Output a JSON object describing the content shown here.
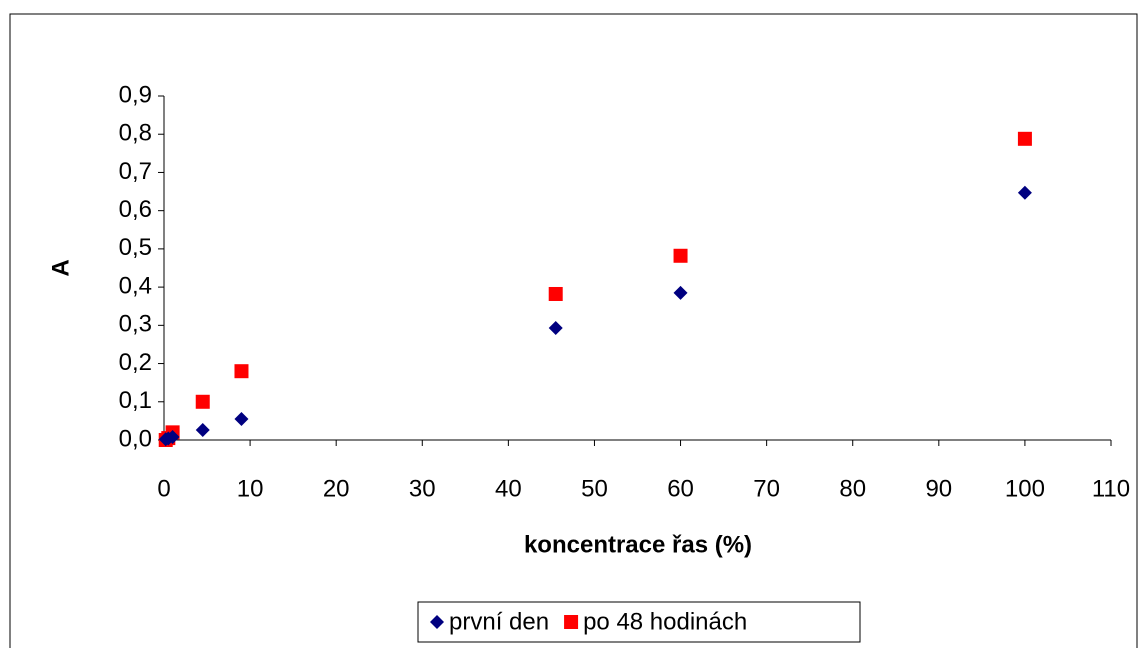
{
  "chart_data": {
    "type": "scatter",
    "x_label": "koncentrace řas (%)",
    "y_label": "A",
    "series": [
      {
        "name": "první den",
        "color": "#000080",
        "marker": "diamond",
        "x": [
          0.2,
          0.5,
          1,
          4.5,
          9,
          45.5,
          60,
          100
        ],
        "values": [
          0.002,
          0.004,
          0.008,
          0.026,
          0.055,
          0.293,
          0.385,
          0.647
        ]
      },
      {
        "name": "po 48 hodinách",
        "color": "#ff0000",
        "marker": "square",
        "x": [
          0.2,
          0.5,
          1,
          4.5,
          9,
          45.5,
          60,
          100
        ],
        "values": [
          0.0,
          0.005,
          0.02,
          0.1,
          0.18,
          0.382,
          0.482,
          0.788
        ]
      }
    ],
    "xlim": [
      0,
      110
    ],
    "xticks": [
      0,
      10,
      20,
      30,
      40,
      50,
      60,
      70,
      80,
      90,
      100,
      110
    ],
    "ylim": [
      0,
      0.9
    ],
    "yticks": [
      {
        "value": 0,
        "label": "0,0"
      },
      {
        "value": 0.1,
        "label": "0,1"
      },
      {
        "value": 0.2,
        "label": "0,2"
      },
      {
        "value": 0.3,
        "label": "0,3"
      },
      {
        "value": 0.4,
        "label": "0,4"
      },
      {
        "value": 0.5,
        "label": "0,5"
      },
      {
        "value": 0.6,
        "label": "0,6"
      },
      {
        "value": 0.7,
        "label": "0,7"
      },
      {
        "value": 0.8,
        "label": "0,8"
      },
      {
        "value": 0.9,
        "label": "0,9"
      }
    ],
    "grid": false,
    "legend": "bottom"
  }
}
